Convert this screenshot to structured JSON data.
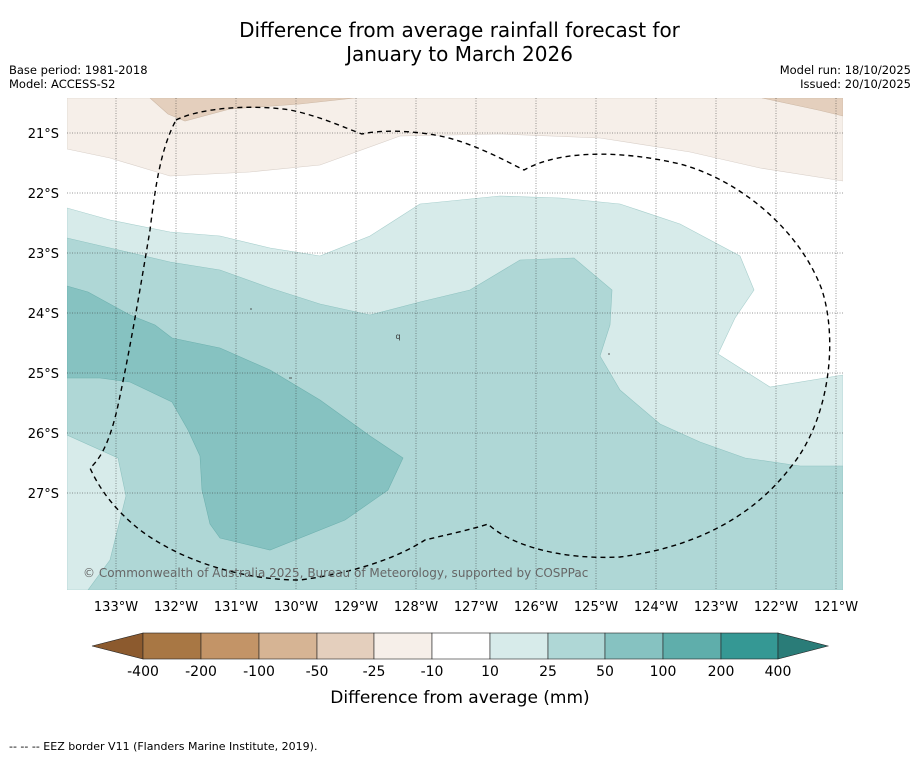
{
  "title": {
    "line1": "Difference from average rainfall forecast for",
    "line2": "January to March 2026"
  },
  "meta_left": {
    "base_period": "Base period: 1981-2018",
    "model": "Model: ACCESS-S2"
  },
  "meta_right": {
    "model_run": "Model run: 18/10/2025",
    "issued": "Issued: 20/10/2025"
  },
  "map": {
    "copyright": "© Commonwealth of Australia 2025, Bureau of Meteorology, supported by COSPPac",
    "lat_labels": [
      "21°S",
      "22°S",
      "23°S",
      "24°S",
      "25°S",
      "26°S",
      "27°S"
    ],
    "lon_labels": [
      "133°W",
      "132°W",
      "131°W",
      "130°W",
      "129°W",
      "128°W",
      "127°W",
      "126°W",
      "125°W",
      "124°W",
      "123°W",
      "122°W",
      "121°W"
    ],
    "minor_label": "q"
  },
  "colorbar": {
    "label": "Difference from average (mm)",
    "ticks": [
      "-400",
      "-200",
      "-100",
      "-50",
      "-25",
      "-10",
      "10",
      "25",
      "50",
      "100",
      "200",
      "400"
    ],
    "colors": [
      "#a87744",
      "#c39467",
      "#d6b494",
      "#e4cfbd",
      "#f6efe9",
      "#ffffff",
      "#d7ebea",
      "#afd7d6",
      "#86c2c1",
      "#5faeab",
      "#359894"
    ],
    "under_color": "#8c5a2e",
    "over_color": "#2a7c78"
  },
  "footnote": "--  --  -- EEZ border V11 (Flanders Marine Institute, 2019)."
}
